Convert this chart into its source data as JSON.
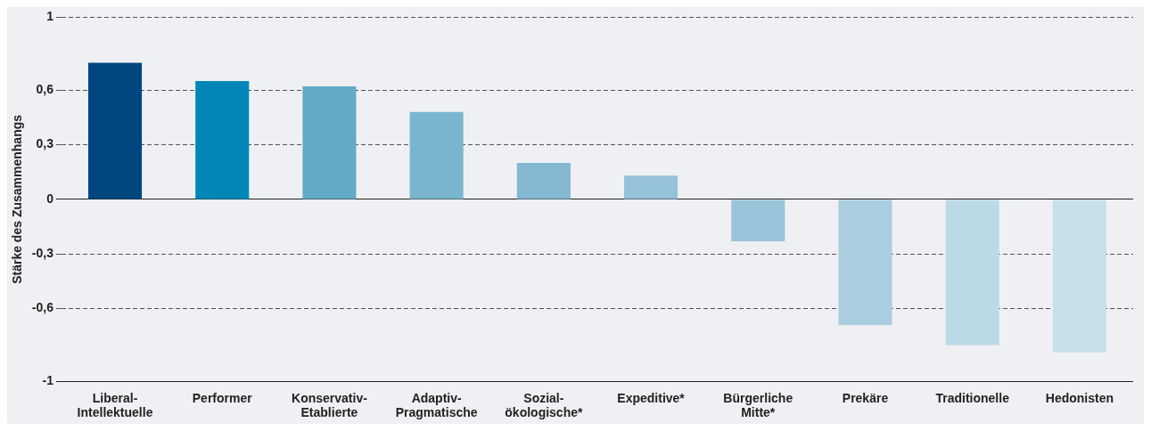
{
  "chart_data": {
    "type": "bar",
    "ylabel": "Stärke des Zusammenhangs",
    "categories": [
      "Liberal- Intellektuelle",
      "Performer",
      "Konservativ- Etablierte",
      "Adaptiv- Pragmatische",
      "Sozial- ökologische*",
      "Expeditive*",
      "Bürgerliche Mitte*",
      "Prekäre",
      "Traditionelle",
      "Hedonisten"
    ],
    "values": [
      0.75,
      0.65,
      0.62,
      0.48,
      0.2,
      0.13,
      -0.23,
      -0.69,
      -0.8,
      -0.84
    ],
    "colors": [
      "#00467f",
      "#0087b8",
      "#63aac7",
      "#7ab5cf",
      "#85b8d3",
      "#94c2d9",
      "#99c4db",
      "#aacde0",
      "#bcdae6",
      "#c8e0ea"
    ],
    "ylim": [
      -1,
      1
    ],
    "yticks": [
      {
        "value": -1,
        "label": "-1"
      },
      {
        "value": -0.6,
        "label": "-0,6"
      },
      {
        "value": -0.3,
        "label": "-0,3"
      },
      {
        "value": 0,
        "label": "0"
      },
      {
        "value": 0.3,
        "label": "0,3"
      },
      {
        "value": 0.6,
        "label": "0,6"
      },
      {
        "value": 1,
        "label": "1"
      }
    ],
    "grid": "y",
    "legend": false
  }
}
